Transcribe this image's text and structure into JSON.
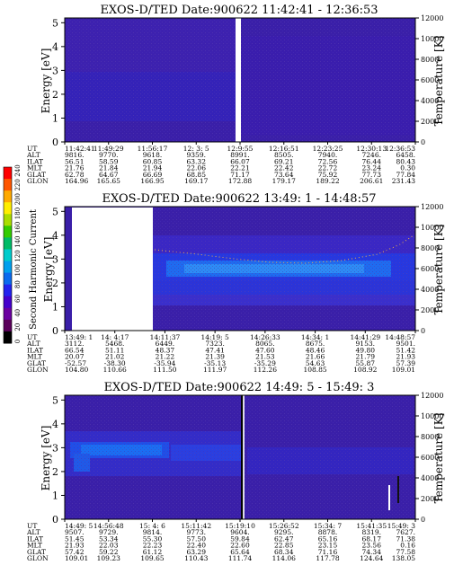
{
  "colorbar": {
    "label": "Second Harmonic Current",
    "ticks": [
      "0",
      "20",
      "40",
      "60",
      "80",
      "100",
      "120",
      "140",
      "160",
      "180",
      "200",
      "220",
      "240"
    ],
    "colors": [
      "#000000",
      "#5a005a",
      "#6a00a0",
      "#4400cc",
      "#2222ee",
      "#0a6aee",
      "#00a0ee",
      "#00cccc",
      "#00bb66",
      "#33cc00",
      "#aadd00",
      "#ffee00",
      "#ffaa00",
      "#ff5500",
      "#ff0000"
    ]
  },
  "chart_data": [
    {
      "type": "heatmap",
      "title": "EXOS-D/TED   Date:900622   11:42:41 - 12:36:53",
      "ylabel": "Energy [eV]",
      "y2label": "Temperature [K]",
      "ylim": [
        0,
        5.2
      ],
      "y2lim": [
        0,
        12000
      ],
      "yticks": [
        "0",
        "1",
        "2",
        "3",
        "4",
        "5"
      ],
      "y2ticks": [
        "0",
        "2000",
        "4000",
        "6000",
        "8000",
        "10000",
        "12000"
      ],
      "data_gaps": [
        "12:9:55"
      ],
      "xtable": {
        "labels": [
          "UT",
          "ALT",
          "ILAT",
          "MLT",
          "GLAT",
          "GLON"
        ],
        "columns": [
          [
            "11:42:41",
            "9816.",
            "56.51",
            "21.76",
            "62.78",
            "164.96"
          ],
          [
            "11:49:29",
            "9770.",
            "58.59",
            "21.84",
            "64.67",
            "165.65"
          ],
          [
            "11:56:17",
            "9618.",
            "60.85",
            "21.94",
            "66.69",
            "166.95"
          ],
          [
            "12: 3: 5",
            "9359.",
            "63.32",
            "22.06",
            "68.85",
            "169.17"
          ],
          [
            "12:9:55",
            "8991.",
            "66.07",
            "22.21",
            "71.17",
            "172.88"
          ],
          [
            "12:16:51",
            "8505.",
            "69.21",
            "22.42",
            "73.64",
            "179.17"
          ],
          [
            "12:23:25",
            "7940.",
            "72.56",
            "22.72",
            "75.92",
            "189.22"
          ],
          [
            "12:30:13",
            "7246.",
            "76.44",
            "23.24",
            "77.73",
            "206.61"
          ],
          [
            "12:36:53",
            "6458.",
            "80.43",
            "0.30",
            "77.84",
            "231.43"
          ]
        ]
      }
    },
    {
      "type": "heatmap",
      "title": "EXOS-D/TED   Date:900622   13:49: 1 - 14:48:57",
      "ylabel": "Energy [eV]",
      "y2label": "Temperature [K]",
      "ylim": [
        0,
        5.2
      ],
      "y2lim": [
        0,
        12000
      ],
      "yticks": [
        "0",
        "1",
        "2",
        "3",
        "4",
        "5"
      ],
      "y2ticks": [
        "0",
        "2000",
        "4000",
        "6000",
        "8000",
        "10000",
        "12000"
      ],
      "data_gaps": [
        "13:49: 1 - 14: 4:17"
      ],
      "xtable": {
        "labels": [
          "UT",
          "ALT",
          "ILAT",
          "MLT",
          "GLAT",
          "GLON"
        ],
        "columns": [
          [
            "13:49: 1",
            "3112.",
            "66.54",
            "20.07",
            "-52.57",
            "104.80"
          ],
          [
            "14: 4:17",
            "5468.",
            "51.11",
            "21.02",
            "-38.30",
            "110.66"
          ],
          [
            "14:11:37",
            "6449.",
            "48.37",
            "21.22",
            "-35.94",
            "111.50"
          ],
          [
            "14:19: 5",
            "7323.",
            "47.41",
            "21.39",
            "-35.13",
            "111.97"
          ],
          [
            "14:26:33",
            "8065.",
            "47.60",
            "21.53",
            "-35.29",
            "112.26"
          ],
          [
            "14:34: 1",
            "8675.",
            "48.46",
            "21.66",
            "54.63",
            "108.85"
          ],
          [
            "14:41:29",
            "9153.",
            "49.80",
            "21.79",
            "55.87",
            "108.92"
          ],
          [
            "14:48:57",
            "9501.",
            "51.42",
            "21.93",
            "57.39",
            "109.01"
          ]
        ]
      }
    },
    {
      "type": "heatmap",
      "title": "EXOS-D/TED   Date:900622   14:49: 5 - 15:49: 3",
      "ylabel": "Energy [eV]",
      "y2label": "Temperature [K]",
      "ylim": [
        0,
        5.2
      ],
      "y2lim": [
        0,
        12000
      ],
      "yticks": [
        "0",
        "1",
        "2",
        "3",
        "4",
        "5"
      ],
      "y2ticks": [
        "0",
        "2000",
        "4000",
        "6000",
        "8000",
        "10000",
        "12000"
      ],
      "xtable": {
        "labels": [
          "UT",
          "ALT",
          "ILAT",
          "MLT",
          "GLAT",
          "GLON"
        ],
        "columns": [
          [
            "14:49: 5",
            "9507.",
            "51.45",
            "21.93",
            "57.42",
            "109.01"
          ],
          [
            "14:56:48",
            "9729.",
            "53.34",
            "22.03",
            "59.22",
            "109.23"
          ],
          [
            "15: 4: 6",
            "9814.",
            "55.30",
            "22.23",
            "61.12",
            "109.65"
          ],
          [
            "15:11:42",
            "9773.",
            "57.50",
            "22.40",
            "63.29",
            "110.43"
          ],
          [
            "15:19:10",
            "9604.",
            "59.84",
            "22.60",
            "65.64",
            "111.74"
          ],
          [
            "15:26:52",
            "9295.",
            "62.47",
            "22.85",
            "68.34",
            "114.06"
          ],
          [
            "15:34: 7",
            "8878.",
            "65.16",
            "23.15",
            "71.16",
            "117.78"
          ],
          [
            "15:41:35",
            "8319.",
            "68.17",
            "23.56",
            "74.34",
            "124.64"
          ],
          [
            "15:49: 3",
            "7627.",
            "71.38",
            "0.16",
            "77.58",
            "138.05"
          ]
        ]
      }
    }
  ]
}
